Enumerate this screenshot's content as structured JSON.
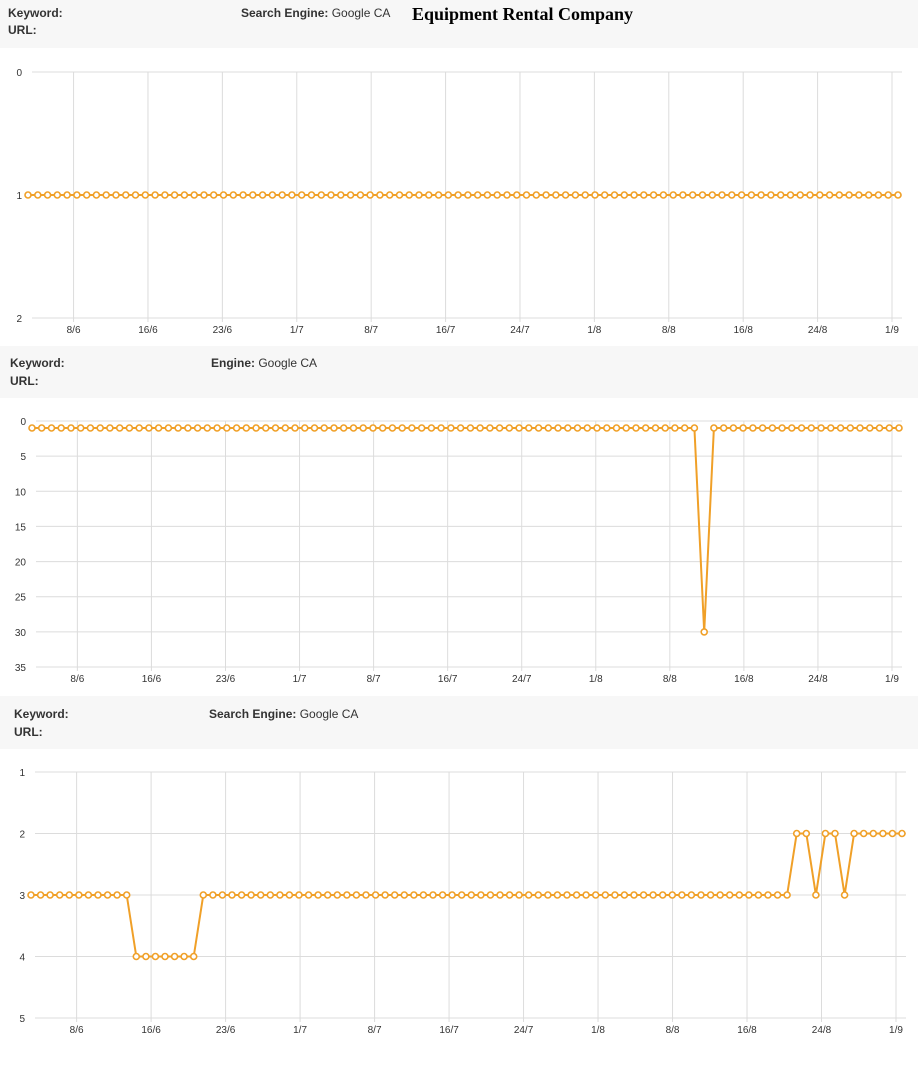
{
  "title": "Equipment Rental Company",
  "panels": [
    {
      "keyword_label": "Keyword:",
      "url_label": "URL:",
      "engine_label": "Search Engine:",
      "engine_value": "Google CA"
    },
    {
      "keyword_label": "Keyword:",
      "url_label": "URL:",
      "engine_label": "Engine:",
      "engine_value": "Google CA"
    },
    {
      "keyword_label": "Keyword:",
      "url_label": "URL:",
      "engine_label": "Search Engine:",
      "engine_value": "Google CA"
    }
  ],
  "chart_data": [
    {
      "type": "line",
      "y_reversed": true,
      "ylim": [
        0,
        2
      ],
      "yticks": [
        0,
        1,
        2
      ],
      "x_tick_labels": [
        "8/6",
        "16/6",
        "23/6",
        "1/7",
        "8/7",
        "16/7",
        "24/7",
        "1/8",
        "8/8",
        "16/8",
        "24/8",
        "1/9"
      ],
      "grid": true,
      "line_color": "#f0a028",
      "series": [
        {
          "values": [
            1,
            1,
            1,
            1,
            1,
            1,
            1,
            1,
            1,
            1,
            1,
            1,
            1,
            1,
            1,
            1,
            1,
            1,
            1,
            1,
            1,
            1,
            1,
            1,
            1,
            1,
            1,
            1,
            1,
            1,
            1,
            1,
            1,
            1,
            1,
            1,
            1,
            1,
            1,
            1,
            1,
            1,
            1,
            1,
            1,
            1,
            1,
            1,
            1,
            1,
            1,
            1,
            1,
            1,
            1,
            1,
            1,
            1,
            1,
            1,
            1,
            1,
            1,
            1,
            1,
            1,
            1,
            1,
            1,
            1,
            1,
            1,
            1,
            1,
            1,
            1,
            1,
            1,
            1,
            1,
            1,
            1,
            1,
            1,
            1,
            1,
            1,
            1,
            1,
            1
          ]
        }
      ]
    },
    {
      "type": "line",
      "y_reversed": true,
      "ylim": [
        0,
        35
      ],
      "yticks": [
        0,
        5,
        10,
        15,
        20,
        25,
        30,
        35
      ],
      "x_tick_labels": [
        "8/6",
        "16/6",
        "23/6",
        "1/7",
        "8/7",
        "16/7",
        "24/7",
        "1/8",
        "8/8",
        "16/8",
        "24/8",
        "1/9"
      ],
      "grid": true,
      "line_color": "#f0a028",
      "series": [
        {
          "values": [
            1,
            1,
            1,
            1,
            1,
            1,
            1,
            1,
            1,
            1,
            1,
            1,
            1,
            1,
            1,
            1,
            1,
            1,
            1,
            1,
            1,
            1,
            1,
            1,
            1,
            1,
            1,
            1,
            1,
            1,
            1,
            1,
            1,
            1,
            1,
            1,
            1,
            1,
            1,
            1,
            1,
            1,
            1,
            1,
            1,
            1,
            1,
            1,
            1,
            1,
            1,
            1,
            1,
            1,
            1,
            1,
            1,
            1,
            1,
            1,
            1,
            1,
            1,
            1,
            1,
            1,
            1,
            1,
            1,
            30,
            1,
            1,
            1,
            1,
            1,
            1,
            1,
            1,
            1,
            1,
            1,
            1,
            1,
            1,
            1,
            1,
            1,
            1,
            1,
            1
          ]
        }
      ]
    },
    {
      "type": "line",
      "y_reversed": true,
      "ylim": [
        1,
        5
      ],
      "yticks": [
        1,
        2,
        3,
        4,
        5
      ],
      "x_tick_labels": [
        "8/6",
        "16/6",
        "23/6",
        "1/7",
        "8/7",
        "16/7",
        "24/7",
        "1/8",
        "8/8",
        "16/8",
        "24/8",
        "1/9"
      ],
      "grid": true,
      "line_color": "#f0a028",
      "series": [
        {
          "values": [
            3,
            3,
            3,
            3,
            3,
            3,
            3,
            3,
            3,
            3,
            3,
            4,
            4,
            4,
            4,
            4,
            4,
            4,
            3,
            3,
            3,
            3,
            3,
            3,
            3,
            3,
            3,
            3,
            3,
            3,
            3,
            3,
            3,
            3,
            3,
            3,
            3,
            3,
            3,
            3,
            3,
            3,
            3,
            3,
            3,
            3,
            3,
            3,
            3,
            3,
            3,
            3,
            3,
            3,
            3,
            3,
            3,
            3,
            3,
            3,
            3,
            3,
            3,
            3,
            3,
            3,
            3,
            3,
            3,
            3,
            3,
            3,
            3,
            3,
            3,
            3,
            3,
            3,
            3,
            3,
            2,
            2,
            3,
            2,
            2,
            3,
            2,
            2,
            2,
            2,
            2,
            2
          ]
        }
      ]
    }
  ]
}
